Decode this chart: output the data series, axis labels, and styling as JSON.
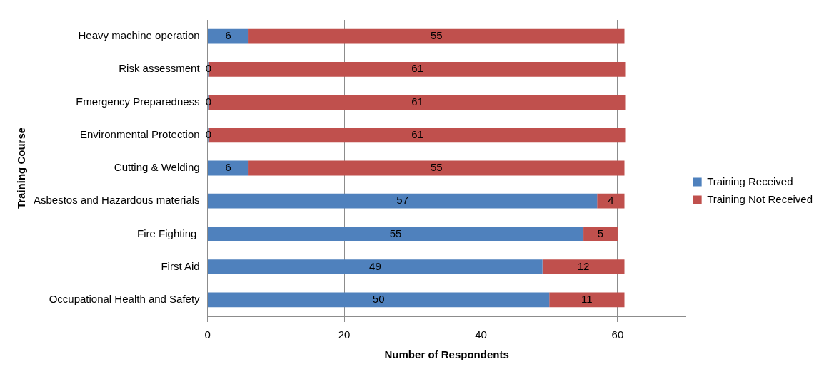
{
  "chart_data": {
    "type": "bar",
    "orientation": "horizontal",
    "stacked": true,
    "xlabel": "Number of Respondents",
    "ylabel": "Training Course",
    "categories": [
      "Heavy machine operation",
      "Risk assessment",
      "Emergency Preparedness",
      "Environmental Protection",
      "Cutting & Welding",
      "Asbestos and Hazardous materials",
      "Fire Fighting ",
      "First Aid",
      "Occupational Health and Safety"
    ],
    "series": [
      {
        "name": "Training Received",
        "color": "#4f81bd",
        "values": [
          6,
          0,
          0,
          0,
          6,
          57,
          55,
          49,
          50
        ]
      },
      {
        "name": "Training Not Received",
        "color": "#c0504d",
        "values": [
          55,
          61,
          61,
          61,
          55,
          4,
          5,
          12,
          11
        ]
      }
    ],
    "xlim": [
      0,
      70
    ],
    "xticks": [
      0,
      20,
      40,
      60
    ],
    "grid": "x",
    "legend": "right",
    "data_labels": true
  }
}
